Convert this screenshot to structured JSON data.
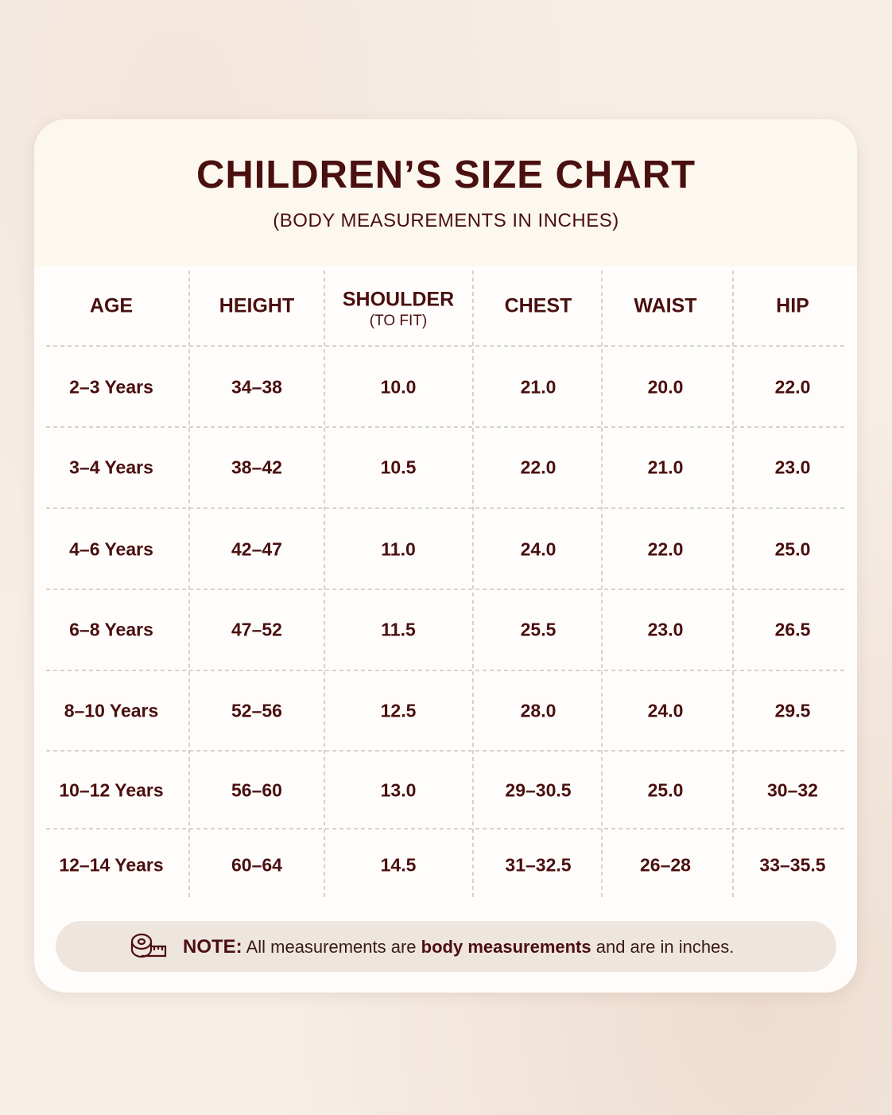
{
  "header": {
    "title": "CHILDREN’S SIZE CHART",
    "subtitle": "(BODY MEASUREMENTS IN INCHES)"
  },
  "table": {
    "headers": [
      {
        "label": "AGE"
      },
      {
        "label": "HEIGHT"
      },
      {
        "label": "SHOULDER",
        "sub": "(TO FIT)"
      },
      {
        "label": "CHEST"
      },
      {
        "label": "WAIST"
      },
      {
        "label": "HIP"
      }
    ],
    "rows": [
      [
        "2–3 Years",
        "34–38",
        "10.0",
        "21.0",
        "20.0",
        "22.0"
      ],
      [
        "3–4 Years",
        "38–42",
        "10.5",
        "22.0",
        "21.0",
        "23.0"
      ],
      [
        "4–6 Years",
        "42–47",
        "11.0",
        "24.0",
        "22.0",
        "25.0"
      ],
      [
        "6–8 Years",
        "47–52",
        "11.5",
        "25.5",
        "23.0",
        "26.5"
      ],
      [
        "8–10 Years",
        "52–56",
        "12.5",
        "28.0",
        "24.0",
        "29.5"
      ],
      [
        "10–12 Years",
        "56–60",
        "13.0",
        "29–30.5",
        "25.0",
        "30–32"
      ],
      [
        "12–14 Years",
        "60–64",
        "14.5",
        "31–32.5",
        "26–28",
        "33–35.5"
      ]
    ]
  },
  "note": {
    "label": "NOTE:",
    "parts": [
      " All measurements are ",
      "body measurements",
      " and are in inches."
    ]
  }
}
